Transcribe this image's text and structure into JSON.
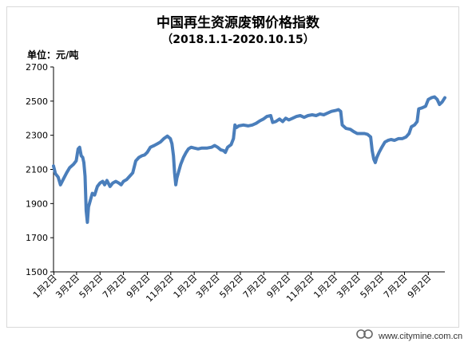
{
  "title": "中国再生资源废钢价格指数",
  "subtitle": "（2018.1.1-2020.10.15）",
  "unit_label": "单位：元/吨",
  "watermark": "www.citymine.com.cn",
  "colors": {
    "line": "#4a7ebb",
    "axis": "#000000",
    "frame": "#d9d9d9"
  },
  "chart_data": {
    "type": "line",
    "title": "中国再生资源废钢价格指数",
    "subtitle": "（2018.1.1-2020.10.15）",
    "ylabel": "单位：元/吨",
    "ylim": [
      1500,
      2700
    ],
    "yticks": [
      1500,
      1700,
      1900,
      2100,
      2300,
      2500,
      2700
    ],
    "grid": false,
    "xlim": [
      "2018-01-01",
      "2020-10-15"
    ],
    "xtick_labels": [
      {
        "date": "2018-01-02",
        "label": "1月2日"
      },
      {
        "date": "2018-03-02",
        "label": "3月2日"
      },
      {
        "date": "2018-05-02",
        "label": "5月2日"
      },
      {
        "date": "2018-07-02",
        "label": "7月2日"
      },
      {
        "date": "2018-09-02",
        "label": "9月2日"
      },
      {
        "date": "2018-11-02",
        "label": "11月2日"
      },
      {
        "date": "2019-01-02",
        "label": "1月2日"
      },
      {
        "date": "2019-03-02",
        "label": "3月2日"
      },
      {
        "date": "2019-05-02",
        "label": "5月2日"
      },
      {
        "date": "2019-07-02",
        "label": "7月2日"
      },
      {
        "date": "2019-09-02",
        "label": "9月2日"
      },
      {
        "date": "2019-11-02",
        "label": "11月2日"
      },
      {
        "date": "2020-01-02",
        "label": "1月2日"
      },
      {
        "date": "2020-03-02",
        "label": "3月2日"
      },
      {
        "date": "2020-05-02",
        "label": "5月2日"
      },
      {
        "date": "2020-07-02",
        "label": "7月2日"
      },
      {
        "date": "2020-09-02",
        "label": "9月2日"
      }
    ],
    "series": [
      {
        "values": [
          [
            "2018-01-01",
            2120
          ],
          [
            "2018-01-06",
            2075
          ],
          [
            "2018-01-13",
            2055
          ],
          [
            "2018-01-19",
            2010
          ],
          [
            "2018-01-26",
            2040
          ],
          [
            "2018-02-04",
            2080
          ],
          [
            "2018-02-12",
            2110
          ],
          [
            "2018-02-22",
            2130
          ],
          [
            "2018-03-01",
            2150
          ],
          [
            "2018-03-06",
            2220
          ],
          [
            "2018-03-10",
            2230
          ],
          [
            "2018-03-14",
            2180
          ],
          [
            "2018-03-18",
            2170
          ],
          [
            "2018-03-21",
            2140
          ],
          [
            "2018-03-24",
            2060
          ],
          [
            "2018-03-27",
            1860
          ],
          [
            "2018-03-30",
            1790
          ],
          [
            "2018-04-02",
            1880
          ],
          [
            "2018-04-07",
            1920
          ],
          [
            "2018-04-12",
            1960
          ],
          [
            "2018-04-18",
            1950
          ],
          [
            "2018-04-25",
            2000
          ],
          [
            "2018-05-02",
            2020
          ],
          [
            "2018-05-09",
            2030
          ],
          [
            "2018-05-14",
            2010
          ],
          [
            "2018-05-20",
            2035
          ],
          [
            "2018-05-28",
            2000
          ],
          [
            "2018-06-04",
            2020
          ],
          [
            "2018-06-12",
            2030
          ],
          [
            "2018-06-20",
            2020
          ],
          [
            "2018-06-26",
            2010
          ],
          [
            "2018-07-02",
            2030
          ],
          [
            "2018-07-10",
            2040
          ],
          [
            "2018-07-18",
            2060
          ],
          [
            "2018-07-26",
            2080
          ],
          [
            "2018-08-03",
            2150
          ],
          [
            "2018-08-11",
            2170
          ],
          [
            "2018-08-19",
            2180
          ],
          [
            "2018-08-26",
            2185
          ],
          [
            "2018-09-02",
            2200
          ],
          [
            "2018-09-10",
            2230
          ],
          [
            "2018-09-20",
            2240
          ],
          [
            "2018-09-28",
            2250
          ],
          [
            "2018-10-06",
            2260
          ],
          [
            "2018-10-15",
            2280
          ],
          [
            "2018-10-24",
            2295
          ],
          [
            "2018-11-01",
            2280
          ],
          [
            "2018-11-05",
            2250
          ],
          [
            "2018-11-09",
            2180
          ],
          [
            "2018-11-12",
            2080
          ],
          [
            "2018-11-15",
            2010
          ],
          [
            "2018-11-18",
            2050
          ],
          [
            "2018-11-23",
            2090
          ],
          [
            "2018-11-28",
            2130
          ],
          [
            "2018-12-05",
            2170
          ],
          [
            "2018-12-12",
            2200
          ],
          [
            "2018-12-18",
            2220
          ],
          [
            "2018-12-25",
            2230
          ],
          [
            "2019-01-02",
            2225
          ],
          [
            "2019-01-12",
            2220
          ],
          [
            "2019-01-22",
            2225
          ],
          [
            "2019-02-05",
            2225
          ],
          [
            "2019-02-16",
            2230
          ],
          [
            "2019-02-24",
            2240
          ],
          [
            "2019-03-04",
            2230
          ],
          [
            "2019-03-12",
            2215
          ],
          [
            "2019-03-19",
            2210
          ],
          [
            "2019-03-24",
            2200
          ],
          [
            "2019-03-30",
            2230
          ],
          [
            "2019-04-08",
            2245
          ],
          [
            "2019-04-14",
            2280
          ],
          [
            "2019-04-18",
            2360
          ],
          [
            "2019-04-22",
            2345
          ],
          [
            "2019-04-28",
            2355
          ],
          [
            "2019-05-10",
            2360
          ],
          [
            "2019-05-22",
            2355
          ],
          [
            "2019-06-02",
            2360
          ],
          [
            "2019-06-12",
            2370
          ],
          [
            "2019-06-22",
            2385
          ],
          [
            "2019-07-01",
            2395
          ],
          [
            "2019-07-10",
            2410
          ],
          [
            "2019-07-20",
            2415
          ],
          [
            "2019-07-25",
            2375
          ],
          [
            "2019-08-02",
            2380
          ],
          [
            "2019-08-12",
            2395
          ],
          [
            "2019-08-20",
            2380
          ],
          [
            "2019-08-28",
            2400
          ],
          [
            "2019-09-05",
            2390
          ],
          [
            "2019-09-15",
            2400
          ],
          [
            "2019-09-25",
            2410
          ],
          [
            "2019-10-05",
            2415
          ],
          [
            "2019-10-15",
            2405
          ],
          [
            "2019-10-25",
            2415
          ],
          [
            "2019-11-05",
            2420
          ],
          [
            "2019-11-15",
            2415
          ],
          [
            "2019-11-25",
            2425
          ],
          [
            "2019-12-05",
            2420
          ],
          [
            "2019-12-15",
            2430
          ],
          [
            "2019-12-25",
            2440
          ],
          [
            "2020-01-05",
            2445
          ],
          [
            "2020-01-12",
            2450
          ],
          [
            "2020-01-18",
            2440
          ],
          [
            "2020-01-22",
            2360
          ],
          [
            "2020-02-01",
            2340
          ],
          [
            "2020-02-12",
            2335
          ],
          [
            "2020-02-22",
            2320
          ],
          [
            "2020-03-01",
            2310
          ],
          [
            "2020-03-10",
            2310
          ],
          [
            "2020-03-20",
            2310
          ],
          [
            "2020-03-28",
            2305
          ],
          [
            "2020-04-05",
            2290
          ],
          [
            "2020-04-09",
            2210
          ],
          [
            "2020-04-13",
            2160
          ],
          [
            "2020-04-17",
            2140
          ],
          [
            "2020-04-21",
            2170
          ],
          [
            "2020-04-27",
            2200
          ],
          [
            "2020-05-04",
            2230
          ],
          [
            "2020-05-12",
            2260
          ],
          [
            "2020-05-20",
            2270
          ],
          [
            "2020-05-28",
            2275
          ],
          [
            "2020-06-06",
            2270
          ],
          [
            "2020-06-16",
            2280
          ],
          [
            "2020-06-26",
            2280
          ],
          [
            "2020-07-06",
            2290
          ],
          [
            "2020-07-14",
            2310
          ],
          [
            "2020-07-20",
            2350
          ],
          [
            "2020-07-28",
            2360
          ],
          [
            "2020-08-04",
            2380
          ],
          [
            "2020-08-08",
            2455
          ],
          [
            "2020-08-16",
            2460
          ],
          [
            "2020-08-26",
            2470
          ],
          [
            "2020-09-02",
            2510
          ],
          [
            "2020-09-10",
            2520
          ],
          [
            "2020-09-18",
            2525
          ],
          [
            "2020-09-25",
            2510
          ],
          [
            "2020-10-01",
            2480
          ],
          [
            "2020-10-08",
            2495
          ],
          [
            "2020-10-15",
            2520
          ]
        ]
      }
    ]
  }
}
